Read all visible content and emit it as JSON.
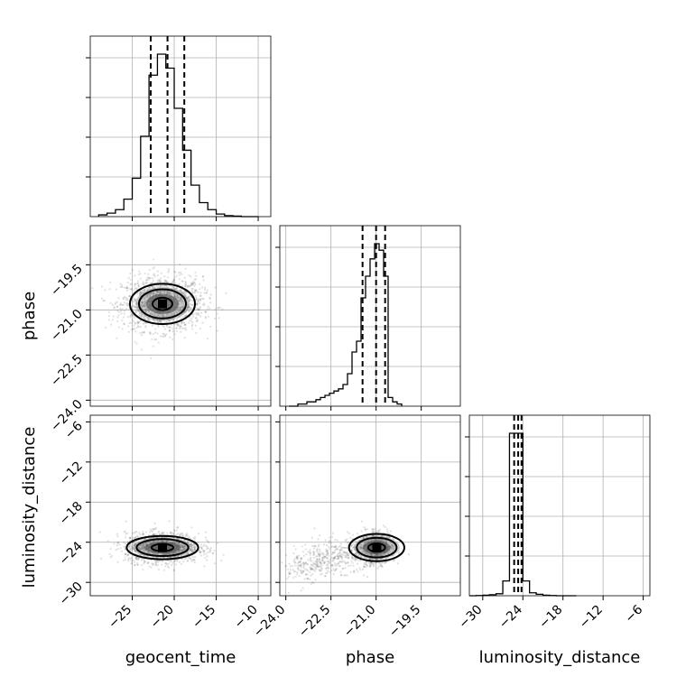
{
  "chart_data": {
    "type": "scatter",
    "parameters": [
      "geocent_time",
      "phase",
      "luminosity_distance"
    ],
    "labels": {
      "geocent_time": "geocent_time",
      "phase": "phase",
      "luminosity_distance": "luminosity_distance"
    },
    "ranges": {
      "geocent_time": [
        -30,
        -8.5
      ],
      "phase": [
        -24.2,
        -18.2
      ],
      "luminosity_distance": [
        -32,
        -5
      ]
    },
    "ticks": {
      "geocent_time": [
        -25,
        -20,
        -15,
        -10
      ],
      "phase": [
        -24.0,
        -22.5,
        -21.0,
        -19.5
      ],
      "luminosity_distance": [
        -30,
        -24,
        -18,
        -12,
        -6
      ]
    },
    "tick_labels": {
      "geocent_time": [
        "−25",
        "−20",
        "−15",
        "−10"
      ],
      "phase": [
        "−24.0",
        "−22.5",
        "−21.0",
        "−19.5"
      ],
      "luminosity_distance": [
        "−30",
        "−24",
        "−18",
        "−12",
        "−6"
      ]
    },
    "quantiles": {
      "geocent_time": [
        -22.8,
        -20.8,
        -18.8
      ],
      "phase": [
        -21.45,
        -21.0,
        -20.7
      ],
      "luminosity_distance": [
        -25.3,
        -24.7,
        -24.2
      ]
    },
    "histograms": {
      "geocent_time": {
        "edges": [
          -29,
          -28,
          -27,
          -26,
          -25,
          -24,
          -23,
          -22,
          -21,
          -20,
          -19,
          -18,
          -17,
          -16,
          -15,
          -14,
          -13,
          -12,
          -11,
          -10
        ],
        "counts": [
          1,
          2,
          4,
          10,
          22,
          46,
          81,
          93,
          85,
          62,
          38,
          18,
          8,
          4,
          1.5,
          0.6,
          0.3,
          0,
          0
        ]
      },
      "phase": {
        "edges": [
          -23.9,
          -23.75,
          -23.6,
          -23.45,
          -23.3,
          -23.15,
          -23.0,
          -22.85,
          -22.7,
          -22.55,
          -22.4,
          -22.25,
          -22.1,
          -21.95,
          -21.8,
          -21.65,
          -21.5,
          -21.35,
          -21.2,
          -21.05,
          -20.9,
          -20.75,
          -20.6,
          -20.45,
          -20.3,
          -20.15
        ],
        "counts": [
          0,
          0,
          1,
          1,
          2,
          2,
          3,
          4,
          5,
          6,
          7,
          8,
          10,
          15,
          25,
          30,
          50,
          60,
          68,
          75,
          72,
          60,
          4,
          2,
          1
        ]
      },
      "luminosity_distance": {
        "edges": [
          -32,
          -31,
          -30,
          -29,
          -28,
          -27,
          -26,
          -25,
          -24,
          -23,
          -22,
          -21,
          -20,
          -19,
          -18,
          -17,
          -16
        ],
        "counts": [
          0,
          0.5,
          1,
          2,
          4,
          30,
          330,
          330,
          30,
          6,
          3,
          1,
          0.5,
          0,
          0,
          0
        ]
      }
    },
    "density_peaks": {
      "phase_vs_geocent_time": {
        "x": -21.4,
        "y": -20.8
      },
      "luminosity_distance_vs_geocent_time": {
        "x": -21.4,
        "y": -24.8
      },
      "luminosity_distance_vs_phase": {
        "x": -20.98,
        "y": -24.8
      }
    },
    "grid": true
  }
}
